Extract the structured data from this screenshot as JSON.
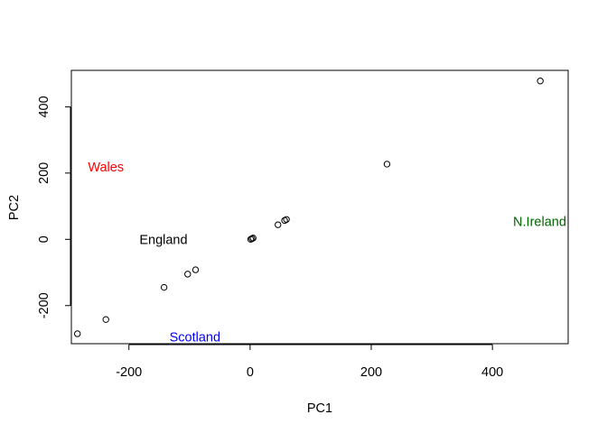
{
  "chart_data": {
    "type": "scatter",
    "title": "",
    "xlabel": "PC1",
    "ylabel": "PC2",
    "xlim": [
      -295,
      525
    ],
    "ylim": [
      -315,
      510
    ],
    "grid": false,
    "legend": "none",
    "x_ticks": [
      -200,
      0,
      200,
      400
    ],
    "y_ticks": [
      -200,
      0,
      200,
      400
    ],
    "points": [
      {
        "x": -285,
        "y": -285
      },
      {
        "x": -238,
        "y": -242
      },
      {
        "x": -142,
        "y": -145
      },
      {
        "x": -103,
        "y": -105
      },
      {
        "x": -90,
        "y": -92
      },
      {
        "x": 1,
        "y": 0
      },
      {
        "x": 3,
        "y": 2
      },
      {
        "x": 5,
        "y": 4
      },
      {
        "x": 46,
        "y": 44
      },
      {
        "x": 57,
        "y": 57
      },
      {
        "x": 60,
        "y": 60
      },
      {
        "x": 226,
        "y": 227
      },
      {
        "x": 479,
        "y": 478
      }
    ],
    "labels": [
      {
        "text": "Wales",
        "x": -238,
        "y": 218,
        "color": "#ff0000"
      },
      {
        "text": "England",
        "x": -143,
        "y": 0,
        "color": "#000000"
      },
      {
        "text": "Scotland",
        "x": -91,
        "y": -294,
        "color": "#0000ff"
      },
      {
        "text": "N.Ireland",
        "x": 478,
        "y": 54,
        "color": "#006400"
      }
    ]
  }
}
